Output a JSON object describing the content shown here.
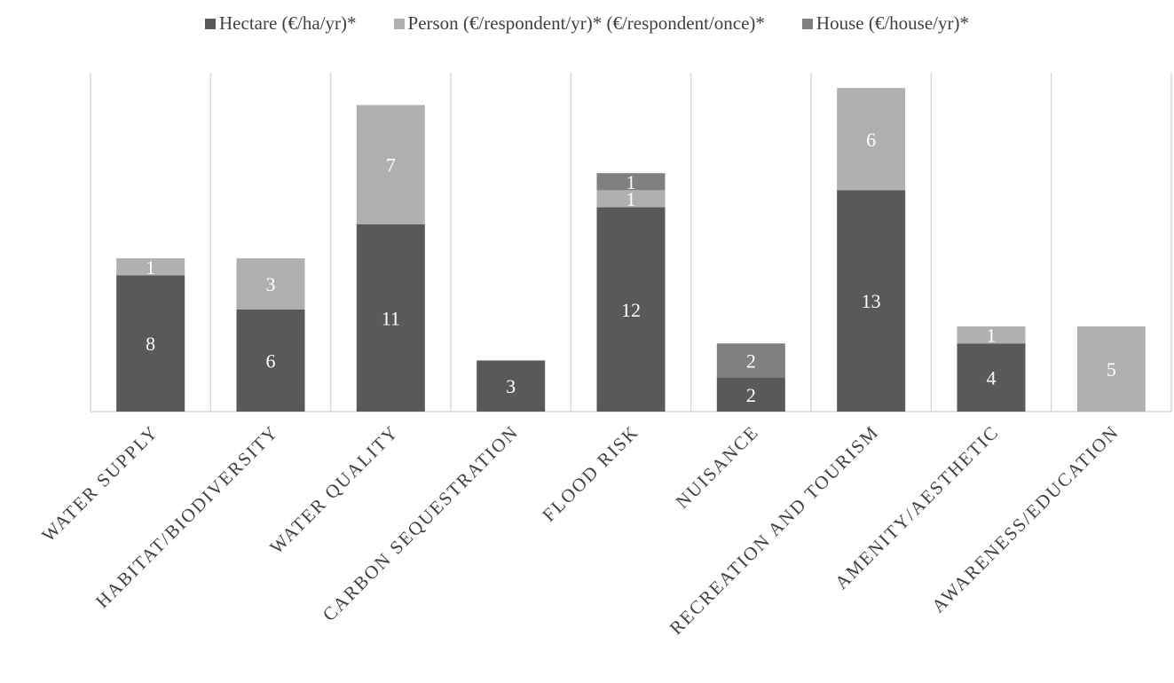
{
  "chart_data": {
    "type": "bar",
    "stacked": true,
    "categories": [
      "WATER SUPPLY",
      "HABITAT/BIODIVERSITY",
      "WATER QUALITY",
      "CARBON SEQUESTRATION",
      "FLOOD RISK",
      "NUISANCE",
      "RECREATION AND TOURISM",
      "AMENITY/AESTHETIC",
      "AWARENESS/EDUCATION"
    ],
    "series": [
      {
        "name": "Hectare (€/ha/yr)*",
        "color": "#595959",
        "values": [
          8,
          6,
          11,
          3,
          12,
          2,
          13,
          4,
          0
        ]
      },
      {
        "name": "Person (€/respondent/yr)* (€/respondent/once)*",
        "color": "#b0b0b0",
        "values": [
          1,
          3,
          7,
          0,
          1,
          0,
          6,
          1,
          5
        ]
      },
      {
        "name": "House (€/house/yr)*",
        "color": "#808080",
        "values": [
          0,
          0,
          0,
          0,
          1,
          2,
          0,
          0,
          0
        ]
      }
    ],
    "ylim": [
      0,
      19
    ],
    "grid": "vertical category separators",
    "legend": "top",
    "data_labels": true,
    "x_tick_rotation": -45
  }
}
